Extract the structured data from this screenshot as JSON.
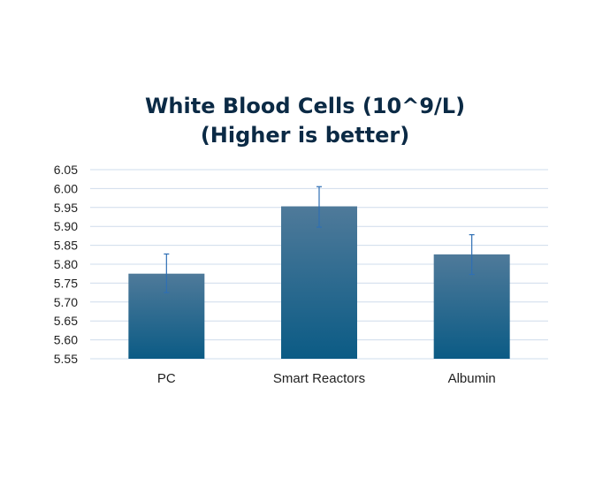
{
  "chart_data": {
    "type": "bar",
    "title": "White Blood Cells (10^9/L)",
    "subtitle": "(Higher is better)",
    "categories": [
      "PC",
      "Smart Reactors",
      "Albumin"
    ],
    "values": [
      5.775,
      5.953,
      5.826
    ],
    "error_upper": [
      5.827,
      6.005,
      5.878
    ],
    "error_lower": [
      5.725,
      5.898,
      5.773
    ],
    "ylim": [
      5.55,
      6.05
    ],
    "yticks": [
      "5.55",
      "5.60",
      "5.65",
      "5.70",
      "5.75",
      "5.80",
      "5.85",
      "5.90",
      "5.95",
      "6.00",
      "6.05"
    ],
    "grid": true,
    "bar_color_top": "#4f7a9a",
    "bar_color_bottom": "#0b5b85",
    "error_color": "#2f6fb4",
    "grid_color": "#cfdcec"
  }
}
